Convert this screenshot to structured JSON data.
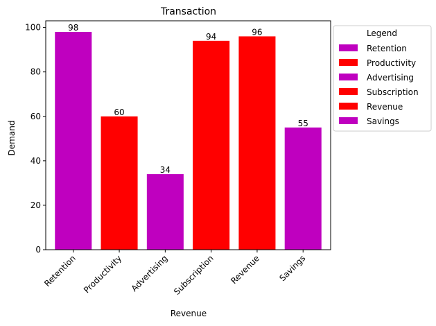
{
  "chart_data": {
    "type": "bar",
    "title": "Transaction",
    "xlabel": "Revenue",
    "ylabel": "Demand",
    "categories": [
      "Retention",
      "Productivity",
      "Advertising",
      "Subscription",
      "Revenue",
      "Savings"
    ],
    "values": [
      98,
      60,
      34,
      94,
      96,
      55
    ],
    "colors": [
      "#bf00bf",
      "#ff0000",
      "#bf00bf",
      "#ff0000",
      "#ff0000",
      "#bf00bf"
    ],
    "ylim": [
      0,
      103
    ],
    "yticks": [
      0,
      20,
      40,
      60,
      80,
      100
    ],
    "grid": false,
    "legend": {
      "title": "Legend",
      "placement": "outside-top-right",
      "entries": [
        {
          "label": "Retention",
          "color": "#bf00bf"
        },
        {
          "label": "Productivity",
          "color": "#ff0000"
        },
        {
          "label": "Advertising",
          "color": "#bf00bf"
        },
        {
          "label": "Subscription",
          "color": "#ff0000"
        },
        {
          "label": "Revenue",
          "color": "#ff0000"
        },
        {
          "label": "Savings",
          "color": "#bf00bf"
        }
      ]
    }
  }
}
